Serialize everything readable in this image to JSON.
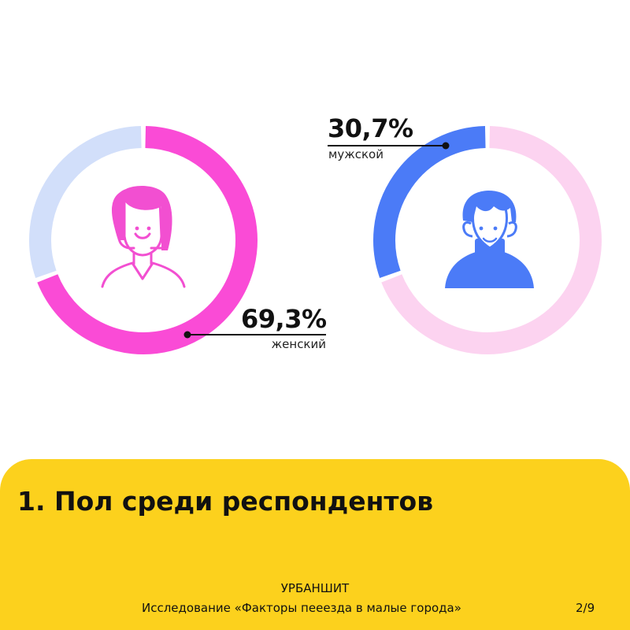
{
  "chart_data": [
    {
      "type": "pie",
      "labels": [
        "женский"
      ],
      "values": [
        69.3
      ],
      "value_labels": [
        "69,3%"
      ],
      "colors": {
        "highlight": "#fa4bd6",
        "rest": "#d2dffa"
      },
      "icon": "woman-icon"
    },
    {
      "type": "pie",
      "labels": [
        "мужской"
      ],
      "values": [
        30.7
      ],
      "value_labels": [
        "30,7%"
      ],
      "colors": {
        "highlight": "#4b7bf7",
        "rest": "#fcd3f0"
      },
      "icon": "man-icon"
    }
  ],
  "female": {
    "percent_label": "69,3%",
    "caption": "женский"
  },
  "male": {
    "percent_label": "30,7%",
    "caption": "мужской"
  },
  "footer": {
    "title": "1. Пол среди респондентов",
    "brand": "УРБАНШИТ",
    "subtitle": "Исследование «Факторы пееезда в малые города»",
    "page": "2/9",
    "background": "#fcd11d"
  }
}
